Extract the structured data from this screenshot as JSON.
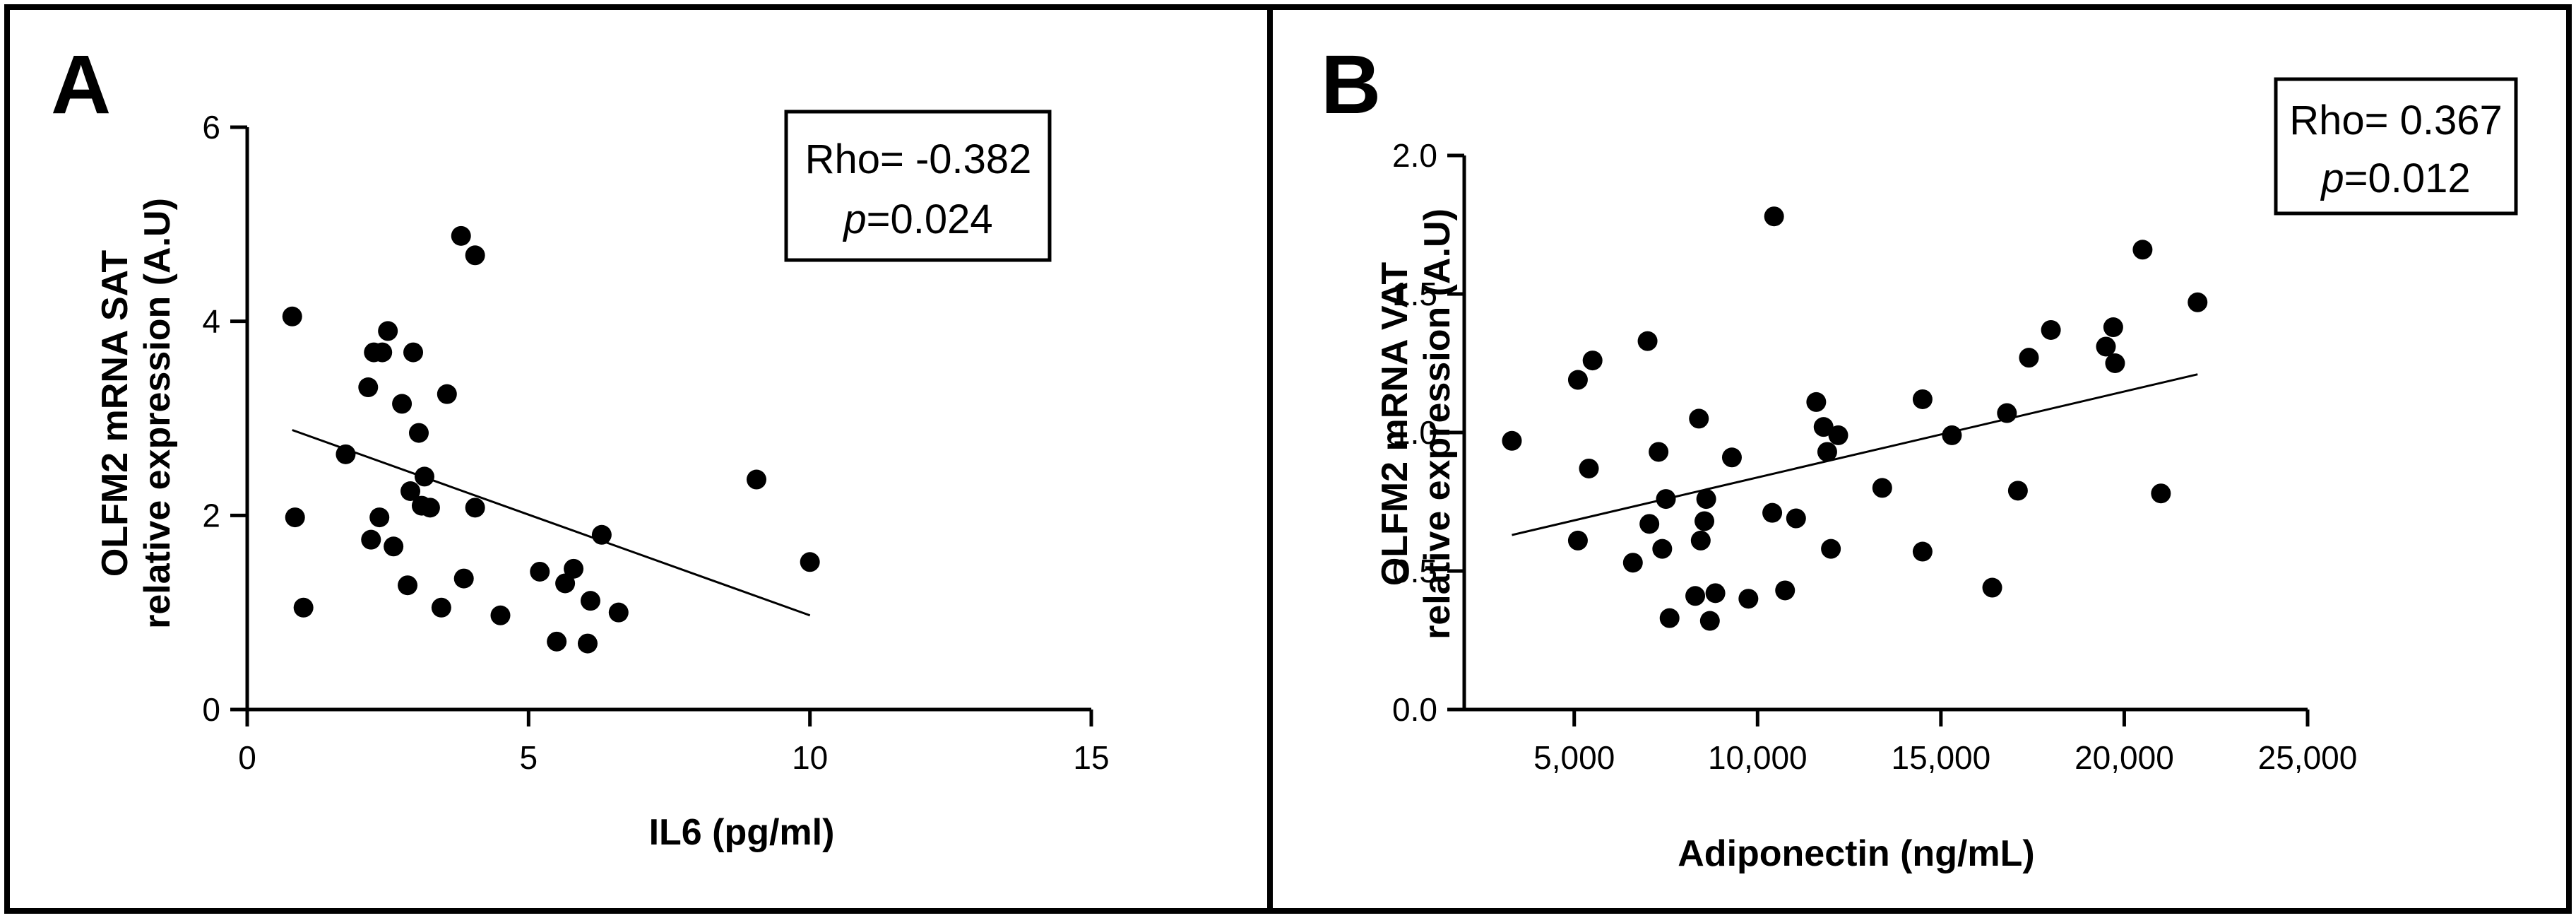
{
  "chart_data": [
    {
      "type": "scatter",
      "panel_label": "A",
      "xlabel": "IL6 (pg/ml)",
      "ylabel_line1": "OLFM2 mRNA SAT",
      "ylabel_line2": "relative expression (A.U)",
      "xlim": [
        0,
        15
      ],
      "ylim": [
        0,
        6
      ],
      "xticks": [
        0,
        5,
        10,
        15
      ],
      "yticks": [
        0,
        2,
        4,
        6
      ],
      "xtick_labels": [
        "0",
        "5",
        "10",
        "15"
      ],
      "ytick_labels": [
        "0",
        "2",
        "4",
        "6"
      ],
      "stats": {
        "rho_label": "Rho= -0.382",
        "p_symbol": "p",
        "p_value": "=0.024"
      },
      "trendline": {
        "x": [
          0.8,
          10.0
        ],
        "y": [
          2.88,
          0.97
        ]
      },
      "points": [
        {
          "x": 0.8,
          "y": 4.05
        },
        {
          "x": 0.85,
          "y": 1.98
        },
        {
          "x": 1.0,
          "y": 1.05
        },
        {
          "x": 1.75,
          "y": 2.63
        },
        {
          "x": 2.15,
          "y": 3.32
        },
        {
          "x": 2.25,
          "y": 3.68
        },
        {
          "x": 2.4,
          "y": 3.68
        },
        {
          "x": 2.5,
          "y": 3.9
        },
        {
          "x": 2.2,
          "y": 1.75
        },
        {
          "x": 2.35,
          "y": 1.98
        },
        {
          "x": 2.6,
          "y": 1.68
        },
        {
          "x": 2.75,
          "y": 3.15
        },
        {
          "x": 2.95,
          "y": 3.68
        },
        {
          "x": 2.9,
          "y": 2.25
        },
        {
          "x": 3.05,
          "y": 2.85
        },
        {
          "x": 3.1,
          "y": 2.1
        },
        {
          "x": 3.15,
          "y": 2.4
        },
        {
          "x": 2.85,
          "y": 1.28
        },
        {
          "x": 3.25,
          "y": 2.08
        },
        {
          "x": 3.45,
          "y": 1.05
        },
        {
          "x": 3.55,
          "y": 3.25
        },
        {
          "x": 3.8,
          "y": 4.88
        },
        {
          "x": 4.05,
          "y": 4.68
        },
        {
          "x": 3.85,
          "y": 1.35
        },
        {
          "x": 4.05,
          "y": 2.08
        },
        {
          "x": 4.5,
          "y": 0.97
        },
        {
          "x": 5.2,
          "y": 1.42
        },
        {
          "x": 5.5,
          "y": 0.7
        },
        {
          "x": 5.65,
          "y": 1.3
        },
        {
          "x": 5.8,
          "y": 1.45
        },
        {
          "x": 6.05,
          "y": 0.68
        },
        {
          "x": 6.1,
          "y": 1.12
        },
        {
          "x": 6.3,
          "y": 1.8
        },
        {
          "x": 6.6,
          "y": 1.0
        },
        {
          "x": 9.05,
          "y": 2.37
        },
        {
          "x": 10.0,
          "y": 1.52
        }
      ]
    },
    {
      "type": "scatter",
      "panel_label": "B",
      "xlabel": "Adiponectin (ng/mL)",
      "ylabel_line1": "OLFM2 mRNA VAT",
      "ylabel_line2": "relative expression (A.U)",
      "xlim": [
        2000,
        25000
      ],
      "ylim": [
        0,
        2.0
      ],
      "xticks": [
        5000,
        10000,
        15000,
        20000,
        25000
      ],
      "yticks": [
        0,
        0.5,
        1.0,
        1.5,
        2.0
      ],
      "xtick_labels": [
        "5,000",
        "10,000",
        "15,000",
        "20,000",
        "25,000"
      ],
      "ytick_labels": [
        "0.0",
        "0.5",
        "1.0",
        "1.5",
        "2.0"
      ],
      "stats": {
        "rho_label": "Rho= 0.367",
        "p_symbol": "p",
        "p_value": "=0.012"
      },
      "trendline": {
        "x": [
          3300,
          22000
        ],
        "y": [
          0.63,
          1.21
        ]
      },
      "points": [
        {
          "x": 3300,
          "y": 0.97
        },
        {
          "x": 5100,
          "y": 1.19
        },
        {
          "x": 5100,
          "y": 0.61
        },
        {
          "x": 5400,
          "y": 0.87
        },
        {
          "x": 5500,
          "y": 1.26
        },
        {
          "x": 6600,
          "y": 0.53
        },
        {
          "x": 7000,
          "y": 1.33
        },
        {
          "x": 7050,
          "y": 0.67
        },
        {
          "x": 7300,
          "y": 0.93
        },
        {
          "x": 7400,
          "y": 0.58
        },
        {
          "x": 7500,
          "y": 0.76
        },
        {
          "x": 7600,
          "y": 0.33
        },
        {
          "x": 8300,
          "y": 0.41
        },
        {
          "x": 8400,
          "y": 1.05
        },
        {
          "x": 8450,
          "y": 0.61
        },
        {
          "x": 8550,
          "y": 0.68
        },
        {
          "x": 8600,
          "y": 0.76
        },
        {
          "x": 8700,
          "y": 0.32
        },
        {
          "x": 8850,
          "y": 0.42
        },
        {
          "x": 9300,
          "y": 0.91
        },
        {
          "x": 9750,
          "y": 0.4
        },
        {
          "x": 10450,
          "y": 1.78
        },
        {
          "x": 10400,
          "y": 0.71
        },
        {
          "x": 10750,
          "y": 0.43
        },
        {
          "x": 11050,
          "y": 0.69
        },
        {
          "x": 11600,
          "y": 1.11
        },
        {
          "x": 11800,
          "y": 1.02
        },
        {
          "x": 11900,
          "y": 0.93
        },
        {
          "x": 12000,
          "y": 0.58
        },
        {
          "x": 12200,
          "y": 0.99
        },
        {
          "x": 13400,
          "y": 0.8
        },
        {
          "x": 14500,
          "y": 1.12
        },
        {
          "x": 14500,
          "y": 0.57
        },
        {
          "x": 15300,
          "y": 0.99
        },
        {
          "x": 16400,
          "y": 0.44
        },
        {
          "x": 16800,
          "y": 1.07
        },
        {
          "x": 17100,
          "y": 0.79
        },
        {
          "x": 17400,
          "y": 1.27
        },
        {
          "x": 18000,
          "y": 1.37
        },
        {
          "x": 19500,
          "y": 1.31
        },
        {
          "x": 19700,
          "y": 1.38
        },
        {
          "x": 19750,
          "y": 1.25
        },
        {
          "x": 20500,
          "y": 1.66
        },
        {
          "x": 21000,
          "y": 0.78
        },
        {
          "x": 22000,
          "y": 1.47
        }
      ]
    }
  ]
}
